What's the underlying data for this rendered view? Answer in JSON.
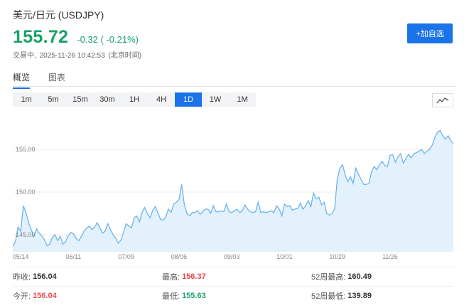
{
  "header": {
    "title": "美元/日元 (USDJPY)",
    "price": "155.72",
    "change": "-0.32 ( -0.21%)",
    "status": "交易中,",
    "timestamp": "2025-11-26 10:42:53",
    "timezone": "(北京时间)",
    "add_button": "+加自选"
  },
  "tabs": [
    {
      "label": "概览",
      "active": true
    },
    {
      "label": "图表",
      "active": false
    }
  ],
  "ranges": [
    {
      "label": "1m",
      "active": false
    },
    {
      "label": "5m",
      "active": false
    },
    {
      "label": "15m",
      "active": false
    },
    {
      "label": "30m",
      "active": false
    },
    {
      "label": "1H",
      "active": false
    },
    {
      "label": "4H",
      "active": false
    },
    {
      "label": "1D",
      "active": true
    },
    {
      "label": "1W",
      "active": false
    },
    {
      "label": "1M",
      "active": false
    }
  ],
  "chart_type_icon": "line-chart-icon",
  "colors": {
    "accent": "#1a73e8",
    "positive": "#1aa167",
    "highlight": "#e84a4a",
    "line": "#6cb4ec",
    "fill": "#e3f1fc"
  },
  "chart_data": {
    "type": "area",
    "ylim": [
      143,
      159
    ],
    "y_ticks": [
      145.0,
      150.0,
      155.0
    ],
    "y_tick_labels": [
      "145.00",
      "150.00",
      "155.00"
    ],
    "x_tick_labels": [
      "05/14",
      "06/11",
      "07/09",
      "08/06",
      "09/03",
      "10/01",
      "10/29",
      "11/26"
    ],
    "x_tick_index": [
      3,
      23,
      43,
      63,
      83,
      103,
      123,
      143
    ],
    "grid": true,
    "values": [
      143.6,
      144.2,
      145.9,
      145.4,
      148.4,
      147.6,
      146.4,
      145.6,
      144.8,
      145.7,
      145.2,
      144.9,
      144.4,
      143.7,
      143.9,
      144.7,
      145.0,
      144.3,
      144.8,
      143.9,
      144.2,
      144.9,
      145.3,
      145.1,
      144.6,
      144.3,
      144.8,
      145.4,
      145.8,
      146.0,
      145.6,
      145.9,
      146.4,
      145.8,
      145.2,
      145.4,
      146.3,
      145.6,
      145.0,
      144.6,
      144.0,
      144.4,
      145.3,
      146.3,
      146.0,
      145.8,
      147.0,
      147.2,
      146.5,
      147.6,
      148.2,
      147.5,
      147.0,
      147.8,
      148.3,
      147.6,
      146.8,
      146.7,
      147.1,
      148.0,
      147.6,
      148.6,
      148.8,
      149.1,
      150.9,
      148.6,
      147.5,
      147.2,
      147.6,
      147.6,
      147.8,
      147.4,
      147.7,
      148.0,
      148.0,
      147.5,
      148.4,
      147.7,
      147.7,
      147.8,
      147.7,
      148.6,
      147.7,
      147.6,
      147.8,
      148.0,
      147.6,
      147.8,
      148.5,
      148.0,
      147.7,
      147.6,
      147.7,
      148.8,
      147.6,
      147.7,
      147.6,
      147.7,
      147.8,
      147.6,
      148.4,
      148.0,
      147.2,
      148.6,
      148.3,
      148.4,
      147.9,
      148.0,
      148.1,
      148.7,
      148.0,
      148.4,
      149.0,
      148.3,
      149.9,
      149.2,
      149.4,
      148.5,
      148.8,
      147.5,
      147.3,
      147.5,
      148.0,
      151.5,
      152.8,
      153.2,
      152.0,
      151.2,
      151.8,
      151.0,
      152.8,
      152.1,
      151.5,
      150.9,
      150.9,
      151.0,
      152.4,
      153.0,
      152.6,
      153.2,
      153.6,
      153.1,
      153.0,
      154.3,
      154.4,
      153.5,
      154.1,
      154.5,
      153.4,
      153.9,
      154.4,
      154.0,
      154.5,
      154.6,
      154.8,
      155.0,
      154.5,
      154.8,
      155.0,
      155.5,
      156.4,
      157.0,
      157.2,
      156.6,
      156.2,
      156.6,
      156.0,
      155.7
    ]
  },
  "stats": [
    [
      {
        "label": "昨收:",
        "value": "156.04",
        "tone": "neutral"
      },
      {
        "label": "最高:",
        "value": "156.37",
        "tone": "up"
      },
      {
        "label": "52周最高:",
        "value": "160.49",
        "tone": "neutral"
      }
    ],
    [
      {
        "label": "今开:",
        "value": "156.04",
        "tone": "up"
      },
      {
        "label": "最低:",
        "value": "155.63",
        "tone": "down"
      },
      {
        "label": "52周最低:",
        "value": "139.89",
        "tone": "neutral"
      }
    ]
  ]
}
